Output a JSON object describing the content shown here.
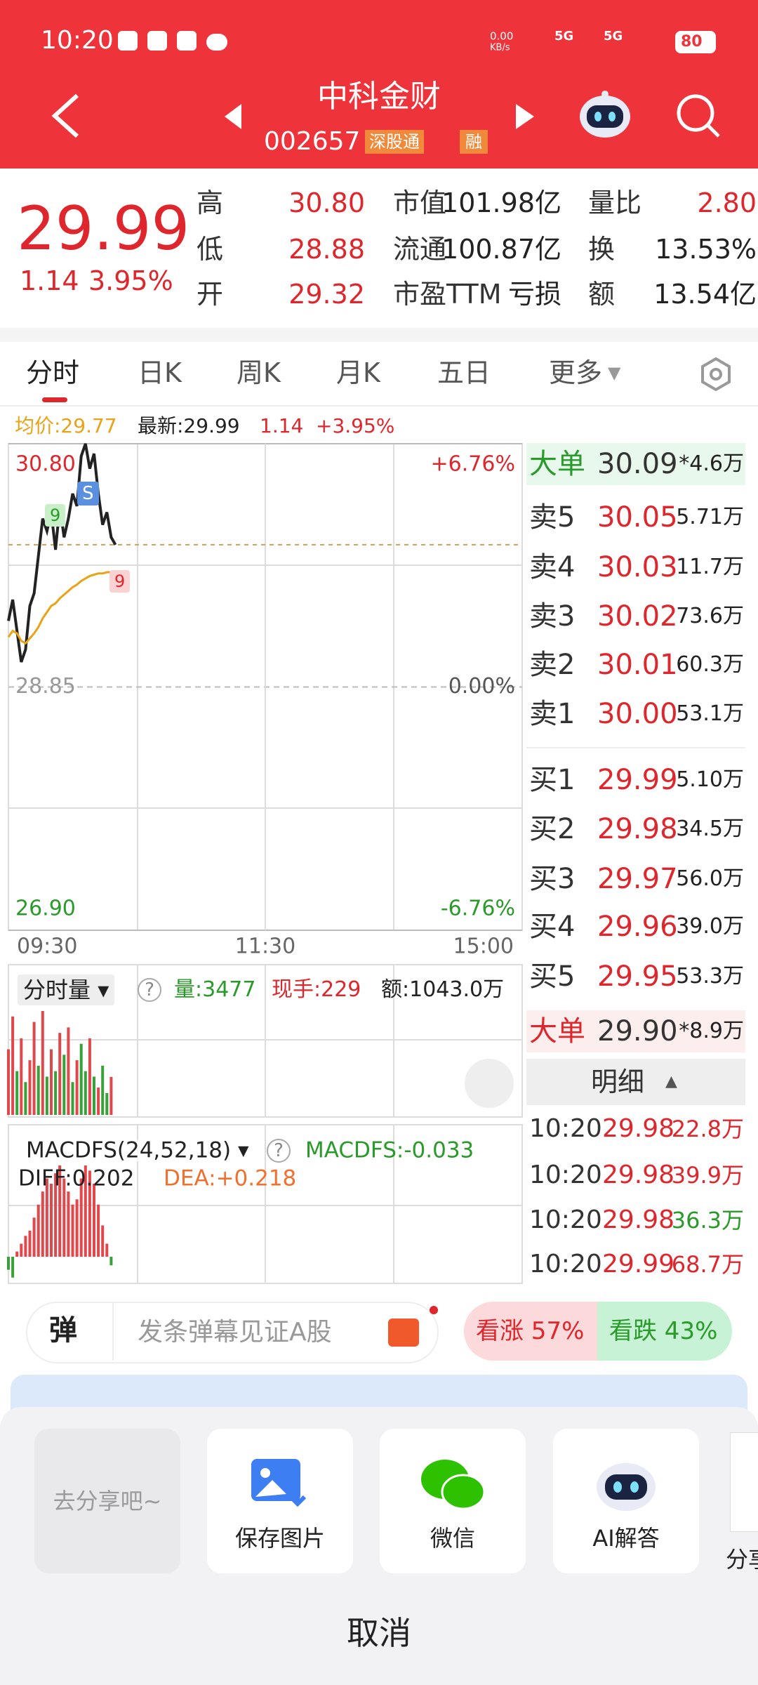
{
  "status_bar": {
    "time": "10:20",
    "net_speed": "0.00",
    "net_unit": "KB/s",
    "network": [
      "5G",
      "5G"
    ],
    "battery": "80"
  },
  "header": {
    "title": "中科金财",
    "code": "002657",
    "badges": [
      "深股通",
      "融"
    ]
  },
  "quote": {
    "price": "29.99",
    "change": "1.14",
    "change_pct": "3.95%",
    "stats": [
      {
        "label": "高",
        "value": "30.80"
      },
      {
        "label": "低",
        "value": "28.88"
      },
      {
        "label": "开",
        "value": "29.32"
      },
      {
        "label": "市值",
        "value": "101.98亿"
      },
      {
        "label": "流通",
        "value": "100.87亿"
      },
      {
        "label": "市盈TTM",
        "value": "亏损"
      },
      {
        "label": "量比",
        "value": "2.80"
      },
      {
        "label": "换",
        "value": "13.53%"
      },
      {
        "label": "额",
        "value": "13.54亿"
      }
    ]
  },
  "tabs": [
    "分时",
    "日K",
    "周K",
    "月K",
    "五日",
    "更多"
  ],
  "chart_data": [
    {
      "type": "line",
      "legend_texts": [
        "均价:29.77",
        "最新:29.99",
        "1.14",
        "+3.95%"
      ],
      "annotations": [
        "9",
        "S",
        "9"
      ],
      "x": [
        0,
        2,
        4,
        6,
        8,
        10,
        12,
        14,
        16,
        18,
        20,
        22,
        24,
        26,
        28,
        30,
        32,
        34,
        36,
        38,
        40,
        42,
        44,
        46,
        48,
        50
      ],
      "xlim": [
        0,
        240
      ],
      "xticks": [
        {
          "value": 0,
          "label": "09:30"
        },
        {
          "value": 120,
          "label": "11:30"
        },
        {
          "value": 240,
          "label": "15:00"
        }
      ],
      "ylim": [
        26.9,
        30.8
      ],
      "yticks": [
        {
          "value": 30.8,
          "label": "30.80"
        },
        28.85,
        {
          "value": 26.9,
          "label": "26.90"
        }
      ],
      "y2lim": [
        -6.76,
        6.76
      ],
      "y2ticks": [
        {
          "value": 6.76,
          "label": "+6.76%"
        },
        {
          "value": 0,
          "label": "0.00%"
        },
        {
          "value": -6.76,
          "label": "-6.76%"
        }
      ],
      "series": [
        {
          "name": "最新",
          "color": "#222222",
          "values": [
            29.38,
            29.55,
            29.3,
            29.05,
            29.15,
            29.5,
            29.6,
            29.9,
            30.2,
            30.1,
            30.25,
            29.95,
            30.3,
            30.05,
            30.2,
            30.4,
            30.3,
            30.7,
            30.8,
            30.6,
            30.72,
            30.4,
            30.15,
            30.25,
            30.05,
            29.99
          ]
        },
        {
          "name": "均价",
          "color": "#e8a317",
          "values": [
            29.25,
            29.3,
            29.28,
            29.22,
            29.2,
            29.24,
            29.28,
            29.33,
            29.4,
            29.45,
            29.5,
            29.52,
            29.56,
            29.59,
            29.62,
            29.65,
            29.67,
            29.7,
            29.72,
            29.74,
            29.75,
            29.76,
            29.76,
            29.77,
            29.77,
            29.77
          ]
        }
      ]
    },
    {
      "type": "bar",
      "title": "分时量",
      "legend_texts": [
        "量:3477",
        "现手:229",
        "额:1043.0万"
      ],
      "x": [
        0,
        2,
        4,
        6,
        8,
        10,
        12,
        14,
        16,
        18,
        20,
        22,
        24,
        26,
        28,
        30,
        32,
        34,
        36,
        38,
        40,
        42,
        44,
        46,
        48
      ],
      "values": [
        6000,
        9000,
        4000,
        7000,
        3000,
        5000,
        8500,
        4500,
        9500,
        3500,
        6000,
        4000,
        7500,
        5500,
        8000,
        3000,
        5000,
        6500,
        4000,
        7000,
        3500,
        2500,
        4500,
        2000,
        3477
      ],
      "colors": [
        "#e0484c",
        "#e0484c",
        "#3aa13a",
        "#e0484c",
        "#3aa13a",
        "#e0484c",
        "#e0484c",
        "#3aa13a",
        "#e0484c",
        "#3aa13a",
        "#e0484c",
        "#3aa13a",
        "#e0484c",
        "#3aa13a",
        "#e0484c",
        "#3aa13a",
        "#e0484c",
        "#3aa13a",
        "#3aa13a",
        "#e0484c",
        "#3aa13a",
        "#e0484c",
        "#3aa13a",
        "#3aa13a",
        "#e0484c"
      ]
    },
    {
      "type": "bar",
      "title": "MACDFS(24,52,18)",
      "legend_texts": [
        "MACDFS:-0.033",
        "DIFF:0.202",
        "DEA:+0.218"
      ],
      "x": [
        0,
        2,
        4,
        6,
        8,
        10,
        12,
        14,
        16,
        18,
        20,
        22,
        24,
        26,
        28,
        30,
        32,
        34,
        36,
        38,
        40,
        42,
        44,
        46,
        48
      ],
      "values": [
        -0.05,
        -0.08,
        0.02,
        0.05,
        0.08,
        0.1,
        0.15,
        0.2,
        0.25,
        0.3,
        0.28,
        0.32,
        0.35,
        0.3,
        0.25,
        0.2,
        0.22,
        0.3,
        0.35,
        0.33,
        0.28,
        0.2,
        0.12,
        0.05,
        -0.033
      ],
      "colors": [
        "#e0484c",
        "#3aa13a"
      ]
    }
  ],
  "order_book": {
    "big_top": {
      "label": "大单",
      "price": "30.09",
      "volume": "*4.6万"
    },
    "asks": [
      {
        "label": "卖5",
        "price": "30.05",
        "volume": "5.71万"
      },
      {
        "label": "卖4",
        "price": "30.03",
        "volume": "11.7万"
      },
      {
        "label": "卖3",
        "price": "30.02",
        "volume": "73.6万"
      },
      {
        "label": "卖2",
        "price": "30.01",
        "volume": "60.3万"
      },
      {
        "label": "卖1",
        "price": "30.00",
        "volume": "53.1万"
      }
    ],
    "bids": [
      {
        "label": "买1",
        "price": "29.99",
        "volume": "5.10万"
      },
      {
        "label": "买2",
        "price": "29.98",
        "volume": "34.5万"
      },
      {
        "label": "买3",
        "price": "29.97",
        "volume": "56.0万"
      },
      {
        "label": "买4",
        "price": "29.96",
        "volume": "39.0万"
      },
      {
        "label": "买5",
        "price": "29.95",
        "volume": "53.3万"
      }
    ],
    "big_bottom": {
      "label": "大单",
      "price": "29.90",
      "volume": "*8.9万"
    },
    "details_title": "明细",
    "trades": [
      {
        "time": "10:20",
        "price": "29.98",
        "volume": "22.8万"
      },
      {
        "time": "10:20",
        "price": "29.98",
        "volume": "39.9万"
      },
      {
        "time": "10:20",
        "price": "29.98",
        "volume": "36.3万"
      },
      {
        "time": "10:20",
        "price": "29.99",
        "volume": "68.7万"
      }
    ]
  },
  "danmu": {
    "icon": "弹",
    "placeholder": "发条弹幕见证A股",
    "bull": "看涨 57%",
    "bear": "看跌 43%"
  },
  "share_sheet": {
    "items": [
      "去分享吧~",
      "保存图片",
      "微信",
      "AI解答",
      "分享"
    ],
    "cancel": "取消"
  }
}
